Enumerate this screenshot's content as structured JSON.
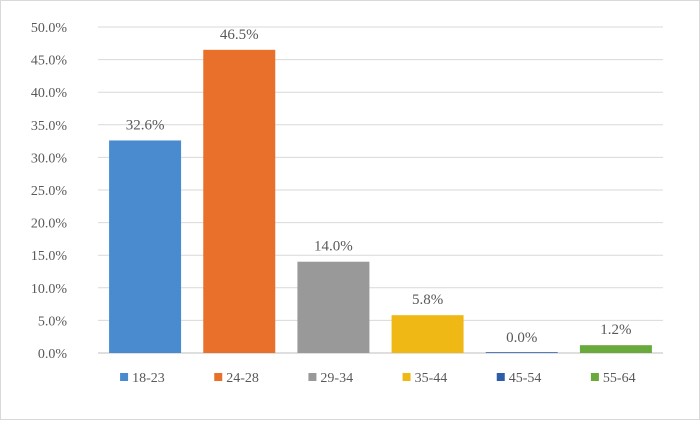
{
  "chart_data": {
    "type": "bar",
    "categories": [
      "18-23",
      "24-28",
      "29-34",
      "35-44",
      "45-54",
      "55-64"
    ],
    "values": [
      32.6,
      46.5,
      14.0,
      5.8,
      0.0,
      1.2
    ],
    "data_labels": [
      "32.6%",
      "46.5%",
      "14.0%",
      "5.8%",
      "0.0%",
      "1.2%"
    ],
    "colors": [
      "#4a8bd0",
      "#e8702a",
      "#999999",
      "#f0b814",
      "#2e5ea8",
      "#6aaa3c"
    ],
    "title": "",
    "xlabel": "",
    "ylabel": "",
    "ylim": [
      0,
      50
    ],
    "yticks": [
      0,
      5,
      10,
      15,
      20,
      25,
      30,
      35,
      40,
      45,
      50
    ],
    "ytick_labels": [
      "0.0%",
      "5.0%",
      "10.0%",
      "15.0%",
      "20.0%",
      "25.0%",
      "30.0%",
      "35.0%",
      "40.0%",
      "45.0%",
      "50.0%"
    ],
    "grid": true,
    "legend": "bottom"
  }
}
